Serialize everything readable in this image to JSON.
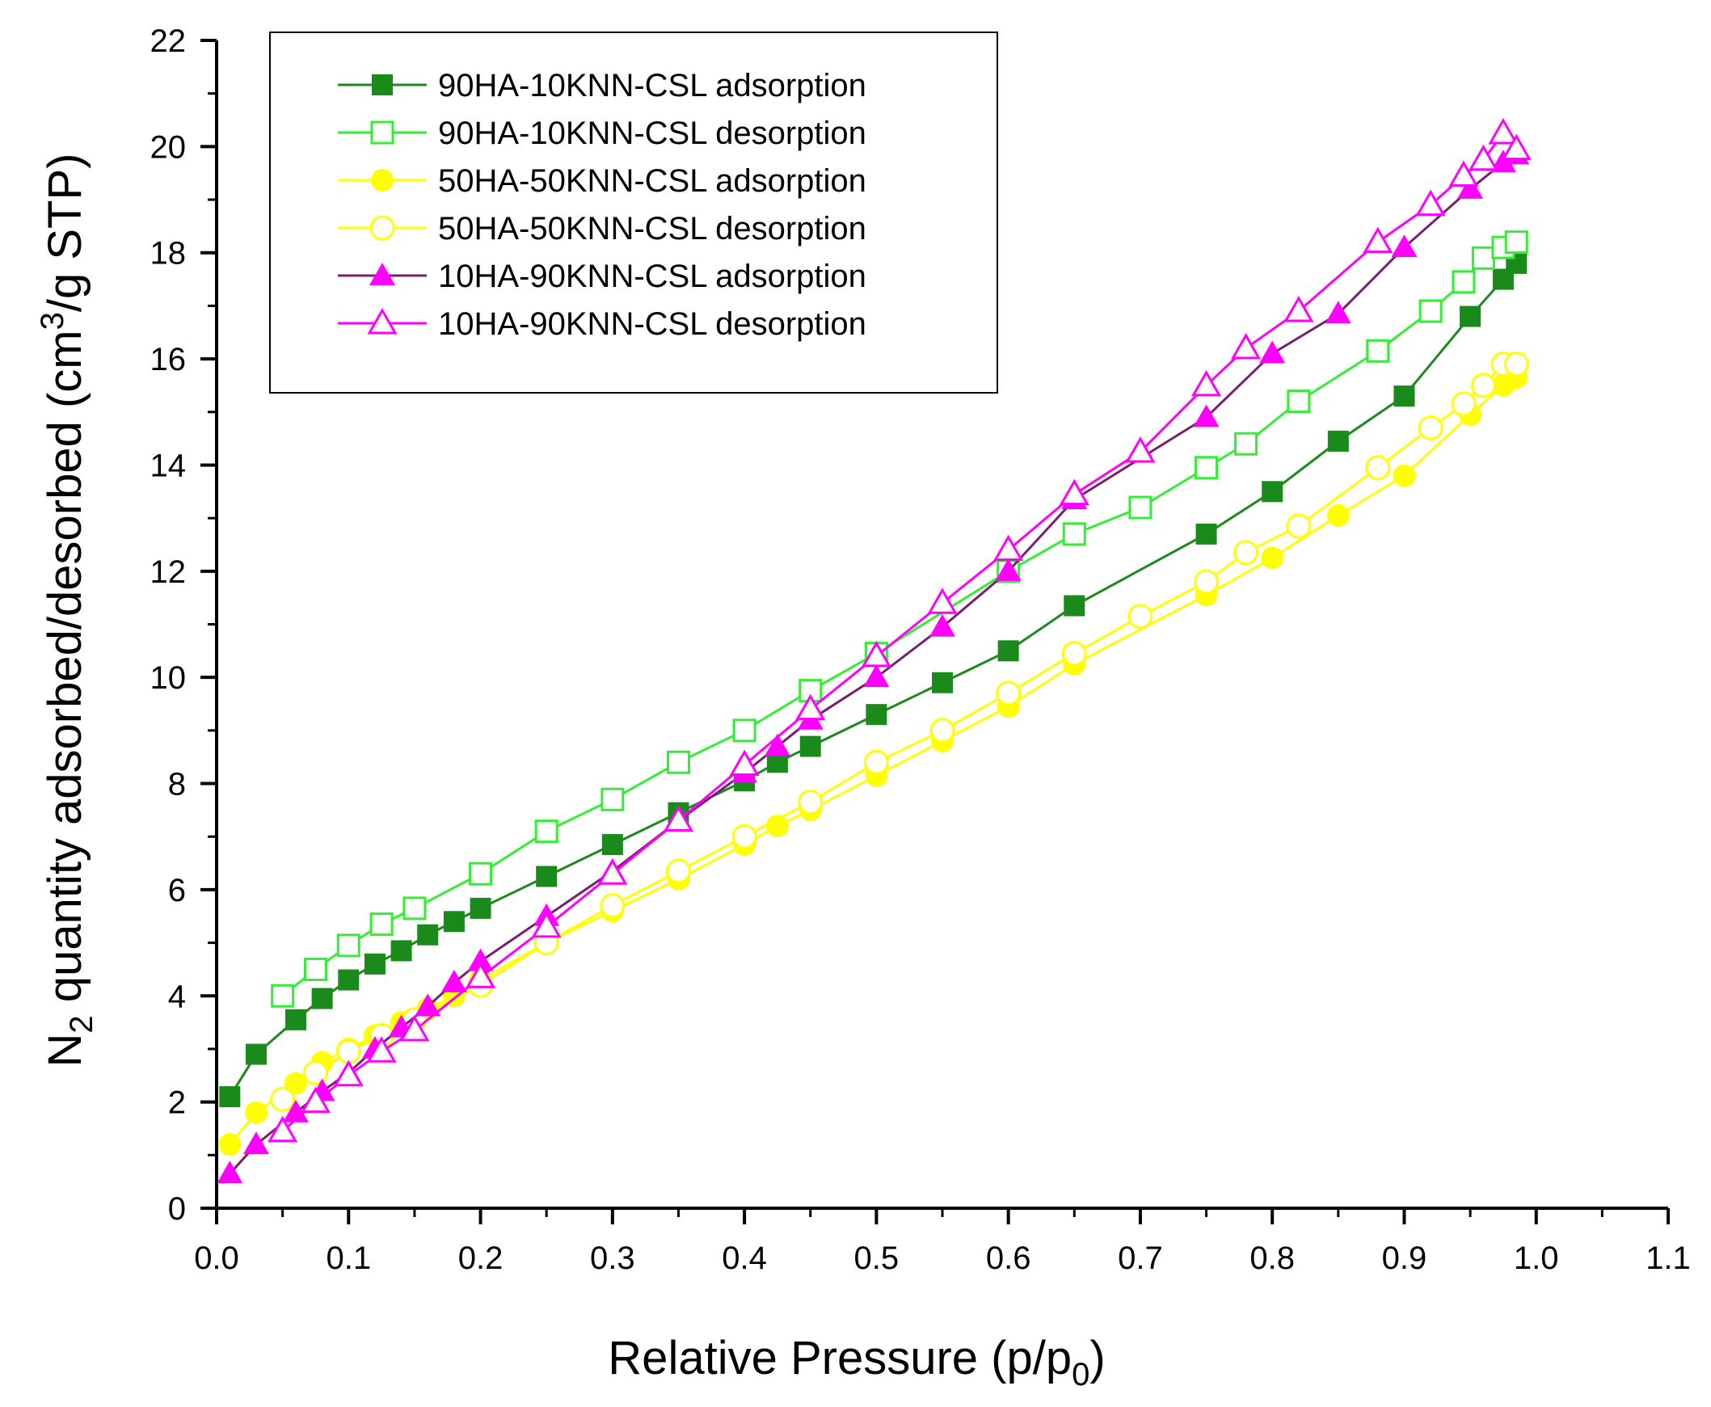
{
  "chart_data": {
    "type": "line",
    "title": "",
    "xlabel": {
      "main": "Relative Pressure (p/p",
      "sub": "0",
      "tail": ")"
    },
    "ylabel": {
      "pre": "N",
      "sub": "2",
      "mid": " quantity adsorbed/desorbed (cm",
      "sup": "3",
      "tail": "/g STP)"
    },
    "xlim": [
      0.0,
      1.1
    ],
    "ylim": [
      0,
      22
    ],
    "x_ticks": [
      "0.0",
      "0.1",
      "0.2",
      "0.3",
      "0.4",
      "0.5",
      "0.6",
      "0.7",
      "0.8",
      "0.9",
      "1.0",
      "1.1"
    ],
    "y_ticks": [
      "0",
      "2",
      "4",
      "6",
      "8",
      "10",
      "12",
      "14",
      "16",
      "18",
      "20",
      "22"
    ],
    "grid": false,
    "legend_position": "top-left",
    "series": [
      {
        "name": "90HA-10KNN-CSL adsorption",
        "color": "#1a8a1a",
        "marker": "square",
        "filled": true,
        "x": [
          0.01,
          0.03,
          0.06,
          0.08,
          0.1,
          0.12,
          0.14,
          0.16,
          0.18,
          0.2,
          0.25,
          0.3,
          0.35,
          0.4,
          0.425,
          0.45,
          0.5,
          0.55,
          0.6,
          0.65,
          0.75,
          0.8,
          0.85,
          0.9,
          0.95,
          0.975,
          0.985
        ],
        "y": [
          2.1,
          2.9,
          3.55,
          3.95,
          4.3,
          4.6,
          4.85,
          5.15,
          5.4,
          5.65,
          6.25,
          6.85,
          7.45,
          8.05,
          8.4,
          8.7,
          9.3,
          9.9,
          10.5,
          11.35,
          12.7,
          13.5,
          14.45,
          15.3,
          16.8,
          17.5,
          17.8
        ]
      },
      {
        "name": "90HA-10KNN-CSL desorption",
        "color": "#33ee33",
        "marker": "square",
        "filled": false,
        "x": [
          0.05,
          0.075,
          0.1,
          0.125,
          0.15,
          0.2,
          0.25,
          0.3,
          0.35,
          0.4,
          0.45,
          0.5,
          0.6,
          0.65,
          0.7,
          0.75,
          0.78,
          0.82,
          0.88,
          0.92,
          0.945,
          0.96,
          0.975,
          0.985
        ],
        "y": [
          4.0,
          4.5,
          4.95,
          5.35,
          5.65,
          6.3,
          7.1,
          7.7,
          8.4,
          9.0,
          9.75,
          10.45,
          12.0,
          12.7,
          13.2,
          13.95,
          14.4,
          15.2,
          16.15,
          16.9,
          17.45,
          17.9,
          18.1,
          18.2
        ]
      },
      {
        "name": "50HA-50KNN-CSL adsorption",
        "color": "#ffff00",
        "marker": "circle",
        "filled": true,
        "x": [
          0.01,
          0.03,
          0.06,
          0.08,
          0.1,
          0.12,
          0.14,
          0.16,
          0.18,
          0.2,
          0.25,
          0.3,
          0.35,
          0.4,
          0.425,
          0.45,
          0.5,
          0.55,
          0.6,
          0.65,
          0.75,
          0.8,
          0.85,
          0.9,
          0.95,
          0.975,
          0.985
        ],
        "y": [
          1.2,
          1.8,
          2.35,
          2.75,
          3.0,
          3.25,
          3.5,
          3.75,
          4.0,
          4.3,
          5.0,
          5.6,
          6.2,
          6.85,
          7.2,
          7.5,
          8.15,
          8.8,
          9.45,
          10.25,
          11.55,
          12.25,
          13.05,
          13.8,
          14.95,
          15.5,
          15.65
        ]
      },
      {
        "name": "50HA-50KNN-CSL desorption",
        "color": "#ffff00",
        "marker": "circle",
        "filled": false,
        "x": [
          0.05,
          0.075,
          0.1,
          0.125,
          0.15,
          0.2,
          0.25,
          0.3,
          0.35,
          0.4,
          0.45,
          0.5,
          0.55,
          0.6,
          0.65,
          0.7,
          0.75,
          0.78,
          0.82,
          0.88,
          0.92,
          0.945,
          0.96,
          0.975,
          0.985
        ],
        "y": [
          2.05,
          2.55,
          2.95,
          3.25,
          3.55,
          4.2,
          5.0,
          5.7,
          6.35,
          7.0,
          7.65,
          8.4,
          9.0,
          9.7,
          10.45,
          11.15,
          11.8,
          12.35,
          12.85,
          13.95,
          14.7,
          15.15,
          15.5,
          15.9,
          15.9
        ]
      },
      {
        "name": "10HA-90KNN-CSL adsorption",
        "color": "#7a1f6e",
        "marker": "triangle",
        "filled": true,
        "marker_color": "#ff00ff",
        "x": [
          0.01,
          0.03,
          0.06,
          0.08,
          0.1,
          0.12,
          0.14,
          0.16,
          0.18,
          0.2,
          0.25,
          0.3,
          0.35,
          0.4,
          0.425,
          0.45,
          0.5,
          0.55,
          0.6,
          0.65,
          0.75,
          0.8,
          0.85,
          0.9,
          0.95,
          0.975,
          0.985
        ],
        "y": [
          0.65,
          1.2,
          1.8,
          2.2,
          2.55,
          3.0,
          3.4,
          3.8,
          4.25,
          4.65,
          5.5,
          6.35,
          7.3,
          8.2,
          8.7,
          9.2,
          10.0,
          10.95,
          12.0,
          13.35,
          14.9,
          16.1,
          16.85,
          18.1,
          19.2,
          19.7,
          19.85
        ]
      },
      {
        "name": "10HA-90KNN-CSL desorption",
        "color": "#ff00ff",
        "marker": "triangle",
        "filled": false,
        "x": [
          0.05,
          0.075,
          0.1,
          0.125,
          0.15,
          0.2,
          0.25,
          0.3,
          0.35,
          0.4,
          0.45,
          0.5,
          0.55,
          0.6,
          0.65,
          0.7,
          0.75,
          0.78,
          0.82,
          0.88,
          0.92,
          0.945,
          0.96,
          0.975,
          0.985
        ],
        "y": [
          1.45,
          2.0,
          2.5,
          2.95,
          3.35,
          4.35,
          5.3,
          6.3,
          7.3,
          8.35,
          9.4,
          10.4,
          11.4,
          12.4,
          13.45,
          14.25,
          15.5,
          16.2,
          16.9,
          18.2,
          18.9,
          19.45,
          19.75,
          20.25,
          19.95
        ]
      }
    ]
  }
}
